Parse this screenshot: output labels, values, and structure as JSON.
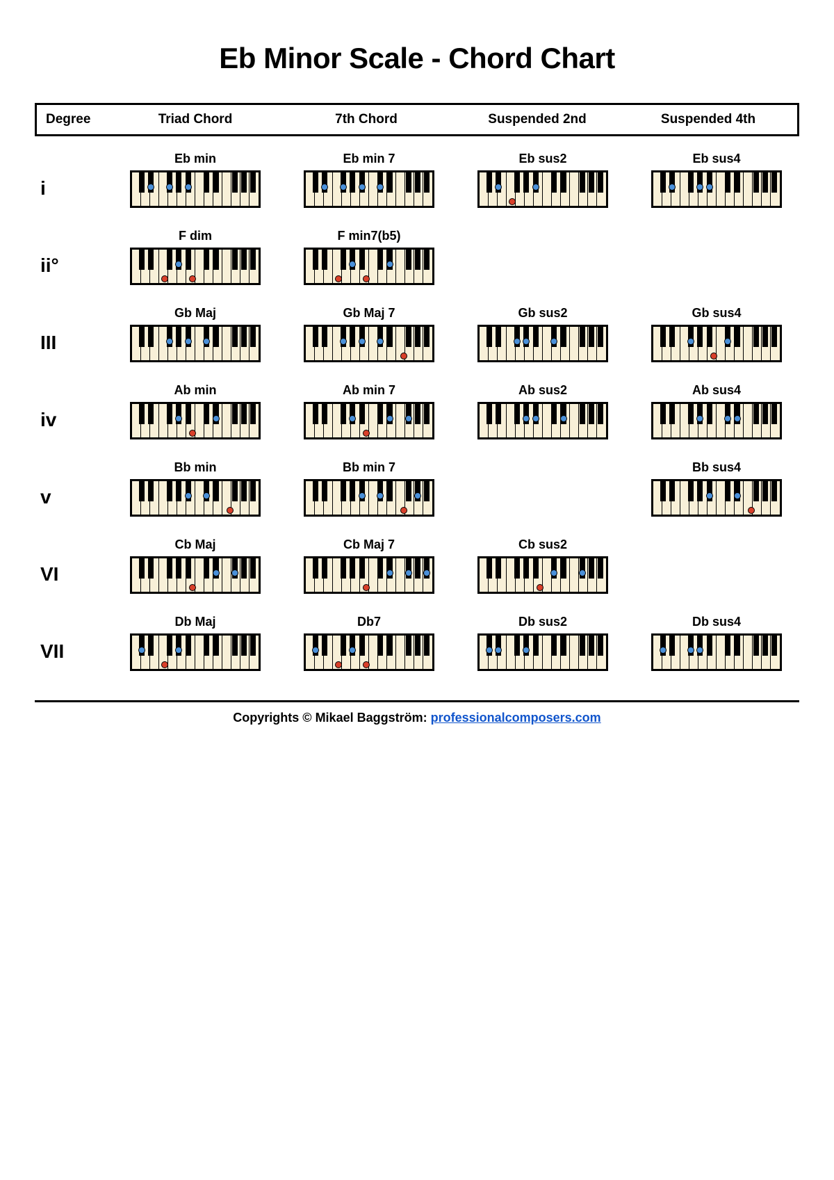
{
  "title": "Eb Minor Scale - Chord Chart",
  "headers": [
    "Degree",
    "Triad Chord",
    "7th Chord",
    "Suspended 2nd",
    "Suspended 4th"
  ],
  "footer_prefix": "Copyrights © Mikael Baggström: ",
  "footer_link": "professionalcomposers.com",
  "colors": {
    "blue": "#4a90d9",
    "red": "#d9402a",
    "white_key": "#f8f0d8",
    "black": "#000000"
  },
  "keyboard": {
    "octaves": 2,
    "white_keys_per_octave": 7,
    "white_key_width": 13.4,
    "black_key_width": 8,
    "height": 54,
    "black_offsets_in_octave": [
      1,
      2,
      4,
      5,
      6
    ],
    "note_to_white_index": {
      "C": 0,
      "D": 1,
      "E": 2,
      "F": 3,
      "G": 4,
      "A": 5,
      "B": 6
    },
    "black_map": {
      "Db": 0,
      "C#": 0,
      "Eb": 1,
      "D#": 1,
      "Gb": 3,
      "F#": 3,
      "Ab": 4,
      "G#": 4,
      "Bb": 5,
      "A#": 5,
      "Cb": 6
    }
  },
  "rows": [
    {
      "degree": "i",
      "chords": [
        {
          "label": "Eb min",
          "notes": [
            {
              "n": "Eb",
              "o": 0,
              "c": "blue"
            },
            {
              "n": "Gb",
              "o": 0,
              "c": "blue"
            },
            {
              "n": "Bb",
              "o": 0,
              "c": "blue"
            }
          ]
        },
        {
          "label": "Eb min 7",
          "notes": [
            {
              "n": "Eb",
              "o": 0,
              "c": "blue"
            },
            {
              "n": "Gb",
              "o": 0,
              "c": "blue"
            },
            {
              "n": "Bb",
              "o": 0,
              "c": "blue"
            },
            {
              "n": "Db",
              "o": 1,
              "c": "blue"
            }
          ]
        },
        {
          "label": "Eb sus2",
          "notes": [
            {
              "n": "Eb",
              "o": 0,
              "c": "blue"
            },
            {
              "n": "F",
              "o": 0,
              "c": "red"
            },
            {
              "n": "Bb",
              "o": 0,
              "c": "blue"
            }
          ]
        },
        {
          "label": "Eb sus4",
          "notes": [
            {
              "n": "Eb",
              "o": 0,
              "c": "blue"
            },
            {
              "n": "Ab",
              "o": 0,
              "c": "blue"
            },
            {
              "n": "Bb",
              "o": 0,
              "c": "blue"
            }
          ]
        }
      ]
    },
    {
      "degree": "ii°",
      "chords": [
        {
          "label": "F dim",
          "notes": [
            {
              "n": "F",
              "o": 0,
              "c": "red"
            },
            {
              "n": "Ab",
              "o": 0,
              "c": "blue"
            },
            {
              "n": "Cb",
              "o": 0,
              "c": "red"
            }
          ]
        },
        {
          "label": "F min7(b5)",
          "notes": [
            {
              "n": "F",
              "o": 0,
              "c": "red"
            },
            {
              "n": "Ab",
              "o": 0,
              "c": "blue"
            },
            {
              "n": "Cb",
              "o": 0,
              "c": "red"
            },
            {
              "n": "Eb",
              "o": 1,
              "c": "blue"
            }
          ]
        },
        null,
        null
      ]
    },
    {
      "degree": "III",
      "chords": [
        {
          "label": "Gb Maj",
          "notes": [
            {
              "n": "Gb",
              "o": 0,
              "c": "blue"
            },
            {
              "n": "Bb",
              "o": 0,
              "c": "blue"
            },
            {
              "n": "Db",
              "o": 1,
              "c": "blue"
            }
          ]
        },
        {
          "label": "Gb Maj 7",
          "notes": [
            {
              "n": "Gb",
              "o": 0,
              "c": "blue"
            },
            {
              "n": "Bb",
              "o": 0,
              "c": "blue"
            },
            {
              "n": "Db",
              "o": 1,
              "c": "blue"
            },
            {
              "n": "F",
              "o": 1,
              "c": "red"
            }
          ]
        },
        {
          "label": "Gb sus2",
          "notes": [
            {
              "n": "Gb",
              "o": 0,
              "c": "blue"
            },
            {
              "n": "Ab",
              "o": 0,
              "c": "blue"
            },
            {
              "n": "Db",
              "o": 1,
              "c": "blue"
            }
          ]
        },
        {
          "label": "Gb sus4",
          "notes": [
            {
              "n": "Gb",
              "o": 0,
              "c": "blue"
            },
            {
              "n": "Cb",
              "o": 0,
              "c": "red"
            },
            {
              "n": "Db",
              "o": 1,
              "c": "blue"
            }
          ]
        }
      ]
    },
    {
      "degree": "iv",
      "chords": [
        {
          "label": "Ab min",
          "notes": [
            {
              "n": "Ab",
              "o": 0,
              "c": "blue"
            },
            {
              "n": "Cb",
              "o": 0,
              "c": "red"
            },
            {
              "n": "Eb",
              "o": 1,
              "c": "blue"
            }
          ]
        },
        {
          "label": "Ab min 7",
          "notes": [
            {
              "n": "Ab",
              "o": 0,
              "c": "blue"
            },
            {
              "n": "Cb",
              "o": 0,
              "c": "red"
            },
            {
              "n": "Eb",
              "o": 1,
              "c": "blue"
            },
            {
              "n": "Gb",
              "o": 1,
              "c": "blue"
            }
          ]
        },
        {
          "label": "Ab sus2",
          "notes": [
            {
              "n": "Ab",
              "o": 0,
              "c": "blue"
            },
            {
              "n": "Bb",
              "o": 0,
              "c": "blue"
            },
            {
              "n": "Eb",
              "o": 1,
              "c": "blue"
            }
          ]
        },
        {
          "label": "Ab sus4",
          "notes": [
            {
              "n": "Ab",
              "o": 0,
              "c": "blue"
            },
            {
              "n": "Db",
              "o": 1,
              "c": "blue"
            },
            {
              "n": "Eb",
              "o": 1,
              "c": "blue"
            }
          ]
        }
      ]
    },
    {
      "degree": "v",
      "chords": [
        {
          "label": "Bb min",
          "notes": [
            {
              "n": "Bb",
              "o": 0,
              "c": "blue"
            },
            {
              "n": "Db",
              "o": 1,
              "c": "blue"
            },
            {
              "n": "F",
              "o": 1,
              "c": "red"
            }
          ]
        },
        {
          "label": "Bb min 7",
          "notes": [
            {
              "n": "Bb",
              "o": 0,
              "c": "blue"
            },
            {
              "n": "Db",
              "o": 1,
              "c": "blue"
            },
            {
              "n": "F",
              "o": 1,
              "c": "red"
            },
            {
              "n": "Ab",
              "o": 1,
              "c": "blue"
            }
          ]
        },
        null,
        {
          "label": "Bb sus4",
          "notes": [
            {
              "n": "Bb",
              "o": 0,
              "c": "blue"
            },
            {
              "n": "Eb",
              "o": 1,
              "c": "blue"
            },
            {
              "n": "F",
              "o": 1,
              "c": "red"
            }
          ]
        }
      ]
    },
    {
      "degree": "VI",
      "chords": [
        {
          "label": "Cb Maj",
          "notes": [
            {
              "n": "Cb",
              "o": 0,
              "c": "red"
            },
            {
              "n": "Eb",
              "o": 1,
              "c": "blue"
            },
            {
              "n": "Gb",
              "o": 1,
              "c": "blue"
            }
          ]
        },
        {
          "label": "Cb Maj 7",
          "notes": [
            {
              "n": "Cb",
              "o": 0,
              "c": "red"
            },
            {
              "n": "Eb",
              "o": 1,
              "c": "blue"
            },
            {
              "n": "Gb",
              "o": 1,
              "c": "blue"
            },
            {
              "n": "Bb",
              "o": 1,
              "c": "blue"
            }
          ]
        },
        {
          "label": "Cb sus2",
          "notes": [
            {
              "n": "Cb",
              "o": 0,
              "c": "red"
            },
            {
              "n": "Db",
              "o": 1,
              "c": "blue"
            },
            {
              "n": "Gb",
              "o": 1,
              "c": "blue"
            }
          ]
        },
        null
      ]
    },
    {
      "degree": "VII",
      "chords": [
        {
          "label": "Db Maj",
          "notes": [
            {
              "n": "Db",
              "o": 0,
              "c": "blue"
            },
            {
              "n": "F",
              "o": 0,
              "c": "red"
            },
            {
              "n": "Ab",
              "o": 0,
              "c": "blue"
            }
          ]
        },
        {
          "label": "Db7",
          "notes": [
            {
              "n": "Db",
              "o": 0,
              "c": "blue"
            },
            {
              "n": "F",
              "o": 0,
              "c": "red"
            },
            {
              "n": "Ab",
              "o": 0,
              "c": "blue"
            },
            {
              "n": "Cb",
              "o": 0,
              "c": "red"
            }
          ]
        },
        {
          "label": "Db sus2",
          "notes": [
            {
              "n": "Db",
              "o": 0,
              "c": "blue"
            },
            {
              "n": "Eb",
              "o": 0,
              "c": "blue"
            },
            {
              "n": "Ab",
              "o": 0,
              "c": "blue"
            }
          ]
        },
        {
          "label": "Db sus4",
          "notes": [
            {
              "n": "Db",
              "o": 0,
              "c": "blue"
            },
            {
              "n": "Gb",
              "o": 0,
              "c": "blue"
            },
            {
              "n": "Ab",
              "o": 0,
              "c": "blue"
            }
          ]
        }
      ]
    }
  ]
}
